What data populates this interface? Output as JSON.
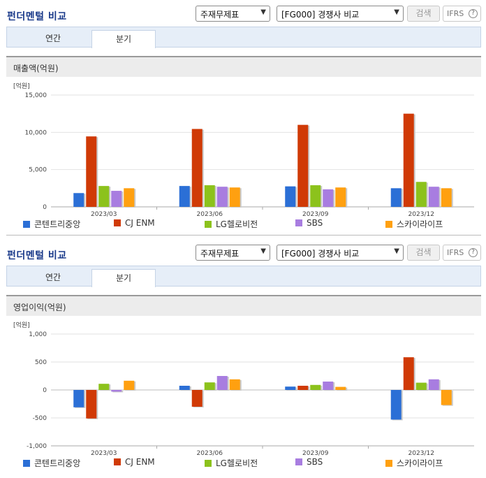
{
  "panels": [
    {
      "title": "펀더멘털 비교",
      "select1": "주재무제표",
      "select2": "[FG000] 경쟁사 비교",
      "search_label": "검색",
      "ifrs_label": "IFRS",
      "help_glyph": "?",
      "tabs": [
        "연간",
        "분기"
      ],
      "metric_label": "매출액(억원)",
      "unit_label": "[억원]"
    },
    {
      "title": "펀더멘털 비교",
      "select1": "주재무제표",
      "select2": "[FG000] 경쟁사 비교",
      "search_label": "검색",
      "ifrs_label": "IFRS",
      "help_glyph": "?",
      "tabs": [
        "연간",
        "분기"
      ],
      "metric_label": "영업이익(억원)",
      "unit_label": "[억원]"
    }
  ],
  "legend": [
    "콘텐트리중앙",
    "CJ ENM",
    "LG헬로비전",
    "SBS",
    "스카이라이프"
  ],
  "colors": [
    "#2b6fd6",
    "#d03a06",
    "#8cc21c",
    "#a87de0",
    "#ffa010"
  ],
  "chart_data": [
    {
      "type": "bar",
      "title": "매출액(억원)",
      "categories": [
        "2023/03",
        "2023/06",
        "2023/09",
        "2023/12"
      ],
      "ylim": [
        0,
        15000
      ],
      "yticks": [
        0,
        5000,
        10000,
        15000
      ],
      "ytick_labels": [
        "0",
        "5,000",
        "10,000",
        "15,000"
      ],
      "series": [
        {
          "name": "콘텐트리중앙",
          "values": [
            1850,
            2800,
            2750,
            2500
          ]
        },
        {
          "name": "CJ ENM",
          "values": [
            9450,
            10450,
            11000,
            12500
          ]
        },
        {
          "name": "LG헬로비전",
          "values": [
            2800,
            2900,
            2900,
            3350
          ]
        },
        {
          "name": "SBS",
          "values": [
            2150,
            2700,
            2350,
            2700
          ]
        },
        {
          "name": "스카이라이프",
          "values": [
            2500,
            2600,
            2600,
            2500
          ]
        }
      ]
    },
    {
      "type": "bar",
      "title": "영업이익(억원)",
      "categories": [
        "2023/03",
        "2023/06",
        "2023/09",
        "2023/12"
      ],
      "ylim": [
        -1000,
        1000
      ],
      "yticks": [
        -1000,
        -500,
        0,
        500,
        1000
      ],
      "ytick_labels": [
        "-1,000",
        "-500",
        "0",
        "500",
        "1,000"
      ],
      "series": [
        {
          "name": "콘텐트리중앙",
          "values": [
            -310,
            75,
            60,
            -530
          ]
        },
        {
          "name": "CJ ENM",
          "values": [
            -510,
            -300,
            75,
            585
          ]
        },
        {
          "name": "LG헬로비전",
          "values": [
            110,
            135,
            90,
            130
          ]
        },
        {
          "name": "SBS",
          "values": [
            -30,
            250,
            150,
            190
          ]
        },
        {
          "name": "스카이라이프",
          "values": [
            165,
            190,
            55,
            -270
          ]
        }
      ]
    }
  ]
}
